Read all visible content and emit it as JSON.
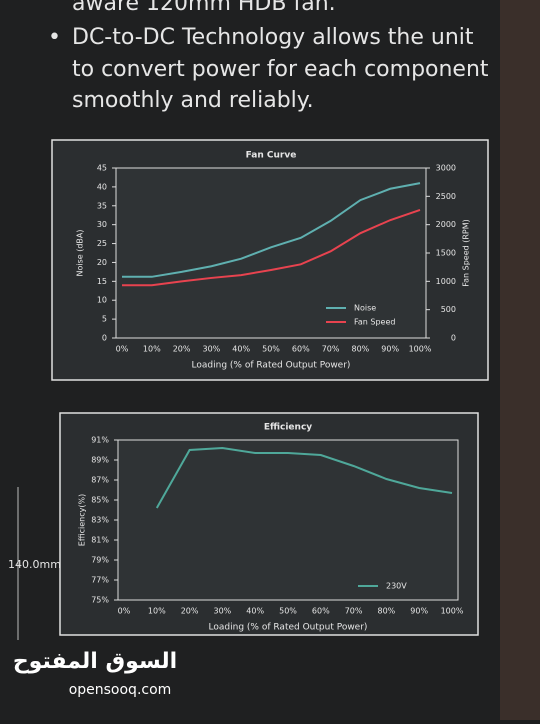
{
  "header": {
    "line0": "aware 120mm HDB fan.",
    "bullet": [
      "DC-to-DC Technology allows the unit",
      "to convert power for each component",
      "smoothly and reliably."
    ]
  },
  "dimension": "140.0mm",
  "watermark": {
    "arabic": "السوق المفتوح",
    "latin": "opensooq.com"
  },
  "chart_data": [
    {
      "type": "line",
      "title": "Fan Curve",
      "xlabel": "Loading (% of Rated Output Power)",
      "ylabel": "Noise (dBA)",
      "y2label": "Fan Speed (RPM)",
      "categories": [
        "0%",
        "10%",
        "20%",
        "30%",
        "40%",
        "50%",
        "60%",
        "70%",
        "80%",
        "90%",
        "100%"
      ],
      "series": [
        {
          "name": "Noise",
          "color": "#5fb0b0",
          "values": [
            16.2,
            16.2,
            17.5,
            19,
            21,
            24,
            26.5,
            31,
            36.5,
            39.5,
            41
          ]
        },
        {
          "name": "Fan Speed",
          "color": "#e8434f",
          "axis": "y2",
          "values": [
            930,
            930,
            1000,
            1060,
            1110,
            1200,
            1300,
            1530,
            1850,
            2080,
            2260
          ]
        }
      ],
      "ylim": [
        0,
        45
      ],
      "yticks": [
        0,
        5,
        10,
        15,
        20,
        25,
        30,
        35,
        40,
        45
      ],
      "y2lim": [
        0,
        3000
      ],
      "y2ticks": [
        0,
        500,
        1000,
        1500,
        2000,
        2500,
        3000
      ],
      "legend": "lower right"
    },
    {
      "type": "line",
      "title": "Efficiency",
      "xlabel": "Loading (% of Rated Output Power)",
      "ylabel": "Efficiency(%)",
      "categories": [
        "0%",
        "10%",
        "20%",
        "30%",
        "40%",
        "50%",
        "60%",
        "70%",
        "80%",
        "90%",
        "100%"
      ],
      "series": [
        {
          "name": "230V",
          "color": "#4fa89a",
          "values": [
            null,
            84.2,
            90.0,
            90.2,
            89.7,
            89.7,
            89.5,
            88.4,
            87.1,
            86.2,
            85.7
          ]
        }
      ],
      "ylim": [
        75,
        91
      ],
      "yticks": [
        {
          "value": 75,
          "label": "75%"
        },
        {
          "value": 77,
          "label": "77%"
        },
        {
          "value": 79,
          "label": "79%"
        },
        {
          "value": 81,
          "label": "81%"
        },
        {
          "value": 83,
          "label": "83%"
        },
        {
          "value": 85,
          "label": "85%"
        },
        {
          "value": 87,
          "label": "87%"
        },
        {
          "value": 89,
          "label": "89%"
        },
        {
          "value": 91,
          "label": "91%"
        }
      ],
      "legend": "lower right"
    }
  ]
}
